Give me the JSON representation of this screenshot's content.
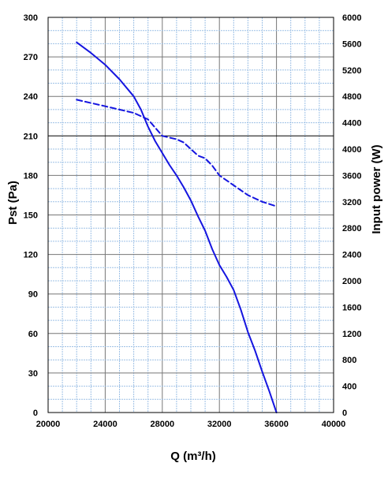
{
  "chart_data": {
    "type": "line",
    "xlabel": "Q (m³/h)",
    "ylabel_left": "Pst (Pa)",
    "ylabel_right": "Input power (W)",
    "xlim": [
      20000,
      40000
    ],
    "ylim_left": [
      0,
      300
    ],
    "ylim_right": [
      0,
      6000
    ],
    "x_ticks": [
      "20000",
      "24000",
      "28000",
      "32000",
      "36000",
      "40000"
    ],
    "y_left_ticks": [
      "0",
      "30",
      "60",
      "90",
      "120",
      "150",
      "180",
      "210",
      "240",
      "270",
      "300"
    ],
    "y_right_ticks": [
      "0",
      "400",
      "800",
      "1200",
      "1600",
      "2000",
      "2400",
      "2800",
      "3200",
      "3600",
      "4000",
      "4400",
      "4800",
      "5200",
      "5600",
      "6000"
    ],
    "grid": true,
    "series": [
      {
        "axis": "left",
        "style": "solid",
        "color": "#1515e0",
        "x": [
          22000,
          23000,
          24000,
          25000,
          26000,
          26500,
          27000,
          27500,
          28000,
          28500,
          29000,
          29500,
          30000,
          30500,
          31000,
          31500,
          32000,
          32500,
          33000,
          33500,
          34000,
          34500,
          35000,
          35500,
          36000
        ],
        "y": [
          281,
          273,
          264,
          253,
          240,
          230,
          217,
          206,
          197,
          188,
          180,
          171,
          161,
          149,
          138,
          124,
          112,
          103,
          93,
          78,
          61,
          47,
          31,
          16,
          0
        ]
      },
      {
        "axis": "right",
        "style": "dashed",
        "color": "#1515e0",
        "x": [
          22000,
          24000,
          26000,
          27000,
          28000,
          29000,
          29500,
          30000,
          30500,
          31000,
          31500,
          32000,
          33000,
          34000,
          35000,
          36000
        ],
        "y": [
          4750,
          4650,
          4550,
          4450,
          4200,
          4150,
          4100,
          4000,
          3900,
          3860,
          3750,
          3600,
          3450,
          3300,
          3200,
          3130
        ]
      }
    ]
  }
}
